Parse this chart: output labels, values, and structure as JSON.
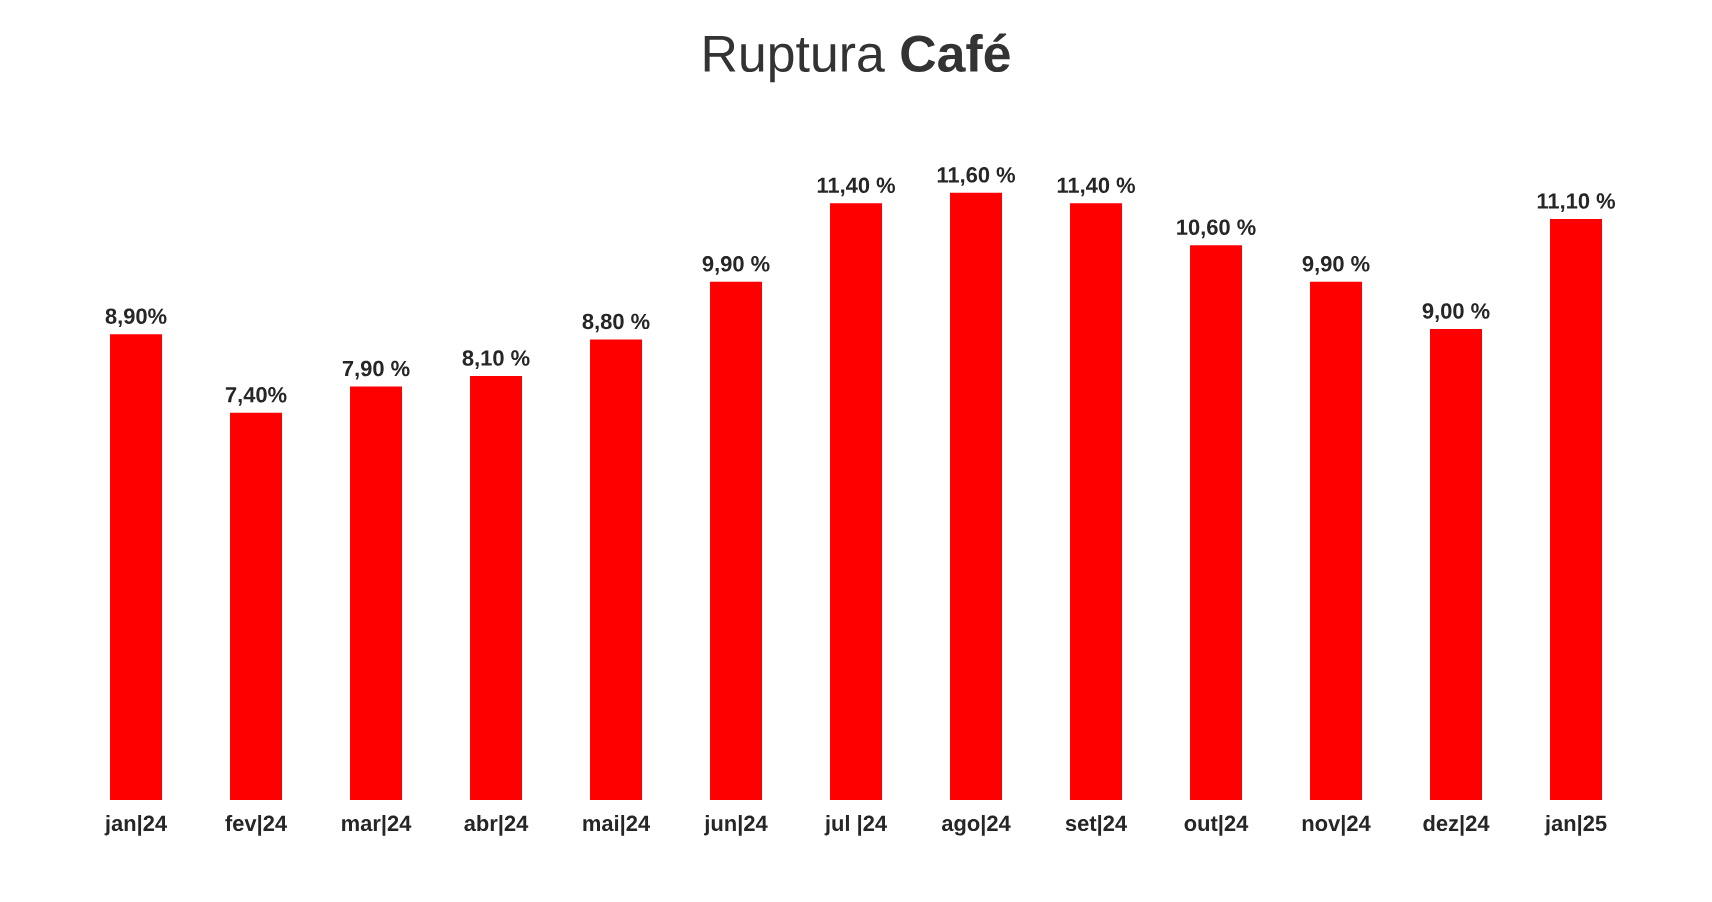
{
  "chart_data": {
    "type": "bar",
    "title": "Ruptura **Café**",
    "categories": [
      "jan|24",
      "fev|24",
      "mar|24",
      "abr|24",
      "mai|24",
      "jun|24",
      "jul |24",
      "ago|24",
      "set|24",
      "out|24",
      "nov|24",
      "dez|24",
      "jan|25"
    ],
    "values": [
      8.9,
      7.4,
      7.9,
      8.1,
      8.8,
      9.9,
      11.4,
      11.6,
      11.4,
      10.6,
      9.9,
      9.0,
      11.1
    ],
    "value_labels": [
      "8,90%",
      "7,40%",
      "7,90 %",
      "8,10 %",
      "8,80 %",
      "9,90 %",
      "11,40 %",
      "11,60 %",
      "11,40 %",
      "10,60 %",
      "9,90 %",
      "9,00 %",
      "11,10 %"
    ],
    "color": "#ff0000"
  }
}
